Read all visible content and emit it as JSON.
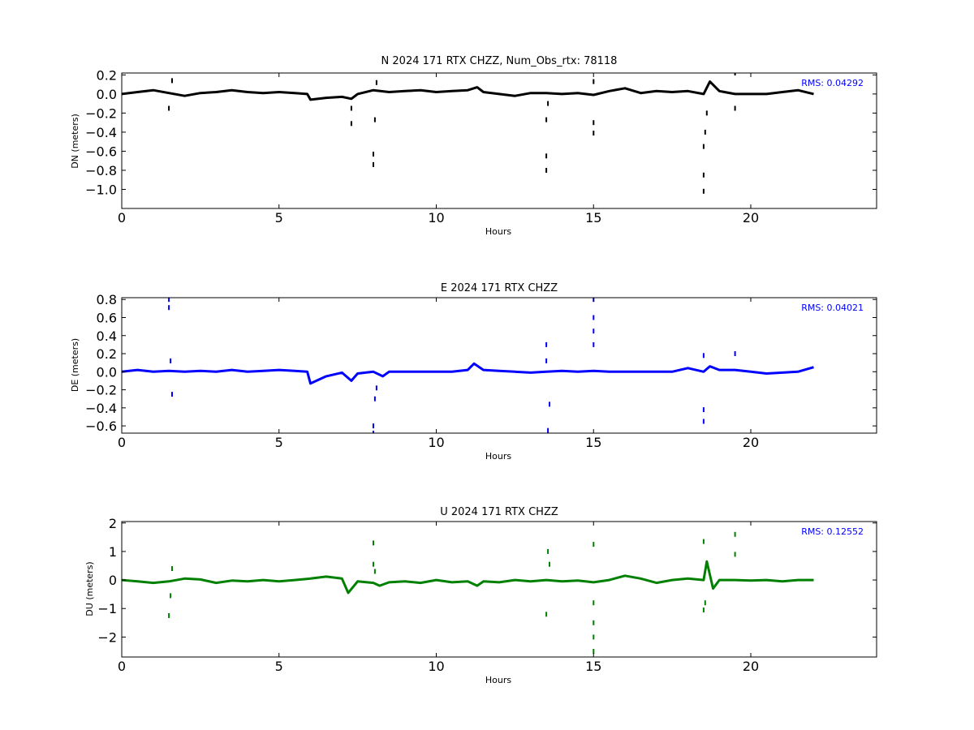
{
  "chart_data": [
    {
      "type": "line",
      "title": "N 2024 171 RTX  CHZZ, Num_Obs_rtx: 78118",
      "xlabel": "Hours",
      "ylabel": "DN (meters)",
      "xlim": [
        0,
        24
      ],
      "ylim": [
        -1.2,
        0.22
      ],
      "x_ticks": [
        0,
        5,
        10,
        15,
        20
      ],
      "y_ticks": [
        0.2,
        0.0,
        -0.2,
        -0.4,
        -0.6,
        -0.8,
        -1.0
      ],
      "x_tick_labels": [
        "0",
        "5",
        "10",
        "15",
        "20"
      ],
      "y_tick_labels": [
        "0.2",
        "0.0",
        "−0.2",
        "−0.4",
        "−0.6",
        "−0.8",
        "−1.0"
      ],
      "annotation": "RMS:  0.04292",
      "annotation_color": "#0000ff",
      "grid": false,
      "color": "#000000",
      "series": [
        {
          "x": [
            0,
            0.5,
            1,
            1.5,
            2,
            2.5,
            3,
            3.5,
            4,
            4.5,
            5,
            5.5,
            5.9,
            6.0,
            6.5,
            7,
            7.3,
            7.5,
            8,
            8.5,
            9,
            9.5,
            10,
            10.5,
            11,
            11.3,
            11.5,
            12,
            12.5,
            13,
            13.5,
            14,
            14.5,
            15,
            15.5,
            16,
            16.5,
            17,
            17.5,
            18,
            18.5,
            18.7,
            19,
            19.5,
            20,
            20.5,
            21,
            21.5,
            22
          ],
          "y": [
            0.0,
            0.02,
            0.04,
            0.01,
            -0.02,
            0.01,
            0.02,
            0.04,
            0.02,
            0.01,
            0.02,
            0.01,
            0.0,
            -0.06,
            -0.04,
            -0.03,
            -0.05,
            0.0,
            0.04,
            0.02,
            0.03,
            0.04,
            0.02,
            0.03,
            0.04,
            0.07,
            0.02,
            0.0,
            -0.02,
            0.01,
            0.01,
            0.0,
            0.01,
            -0.01,
            0.03,
            0.06,
            0.01,
            0.03,
            0.02,
            0.03,
            0.0,
            0.13,
            0.03,
            0.0,
            0.0,
            0.0,
            0.02,
            0.04,
            0.0
          ]
        }
      ],
      "outliers": [
        {
          "x": 1.5,
          "y": -0.15
        },
        {
          "x": 1.6,
          "y": 0.14
        },
        {
          "x": 7.3,
          "y": -0.31
        },
        {
          "x": 7.3,
          "y": -0.15
        },
        {
          "x": 8.0,
          "y": -0.63
        },
        {
          "x": 8.0,
          "y": -0.74
        },
        {
          "x": 8.05,
          "y": -0.27
        },
        {
          "x": 8.1,
          "y": 0.12
        },
        {
          "x": 13.5,
          "y": -0.27
        },
        {
          "x": 13.5,
          "y": -0.65
        },
        {
          "x": 13.5,
          "y": -0.8
        },
        {
          "x": 13.55,
          "y": -0.1
        },
        {
          "x": 15.0,
          "y": -0.41
        },
        {
          "x": 15.0,
          "y": -0.3
        },
        {
          "x": 15.0,
          "y": 0.13
        },
        {
          "x": 18.5,
          "y": -1.02
        },
        {
          "x": 18.5,
          "y": -0.85
        },
        {
          "x": 18.5,
          "y": -0.55
        },
        {
          "x": 18.55,
          "y": -0.4
        },
        {
          "x": 18.6,
          "y": -0.2
        },
        {
          "x": 19.5,
          "y": 0.22
        },
        {
          "x": 19.5,
          "y": -0.15
        }
      ]
    },
    {
      "type": "line",
      "title": "E 2024 171 RTX  CHZZ",
      "xlabel": "Hours",
      "ylabel": "DE (meters)",
      "xlim": [
        0,
        24
      ],
      "ylim": [
        -0.68,
        0.82
      ],
      "x_ticks": [
        0,
        5,
        10,
        15,
        20
      ],
      "y_ticks": [
        0.8,
        0.6,
        0.4,
        0.2,
        0.0,
        -0.2,
        -0.4,
        -0.6
      ],
      "x_tick_labels": [
        "0",
        "5",
        "10",
        "15",
        "20"
      ],
      "y_tick_labels": [
        "0.8",
        "0.6",
        "0.4",
        "0.2",
        "0.0",
        "−0.2",
        "−0.4",
        "−0.6"
      ],
      "annotation": "RMS:  0.04021",
      "annotation_color": "#0000ff",
      "grid": false,
      "color": "#0000ff",
      "series": [
        {
          "x": [
            0,
            0.5,
            1,
            1.5,
            2,
            2.5,
            3,
            3.5,
            4,
            4.5,
            5,
            5.5,
            5.9,
            6.0,
            6.5,
            7,
            7.3,
            7.5,
            8,
            8.3,
            8.5,
            9,
            9.5,
            10,
            10.5,
            11,
            11.2,
            11.5,
            12,
            12.5,
            13,
            13.5,
            14,
            14.5,
            15,
            15.5,
            16,
            16.5,
            17,
            17.5,
            18,
            18.5,
            18.7,
            19,
            19.5,
            20,
            20.5,
            21,
            21.5,
            22
          ],
          "y": [
            0.0,
            0.02,
            0.0,
            0.01,
            0.0,
            0.01,
            0.0,
            0.02,
            0.0,
            0.01,
            0.02,
            0.01,
            0.0,
            -0.13,
            -0.05,
            -0.01,
            -0.1,
            -0.02,
            0.0,
            -0.05,
            0.0,
            0.0,
            0.0,
            0.0,
            0.0,
            0.02,
            0.09,
            0.02,
            0.01,
            0.0,
            -0.01,
            0.0,
            0.01,
            0.0,
            0.01,
            0.0,
            0.0,
            0.0,
            0.0,
            0.0,
            0.04,
            0.0,
            0.06,
            0.02,
            0.02,
            0.0,
            -0.02,
            -0.01,
            0.0,
            0.05
          ]
        }
      ],
      "outliers": [
        {
          "x": 1.5,
          "y": 0.8
        },
        {
          "x": 1.5,
          "y": 0.71
        },
        {
          "x": 1.55,
          "y": 0.12
        },
        {
          "x": 1.6,
          "y": -0.25
        },
        {
          "x": 8.0,
          "y": -0.6
        },
        {
          "x": 8.0,
          "y": -0.68
        },
        {
          "x": 8.05,
          "y": -0.3
        },
        {
          "x": 8.1,
          "y": -0.18
        },
        {
          "x": 13.5,
          "y": 0.3
        },
        {
          "x": 13.5,
          "y": 0.12
        },
        {
          "x": 13.6,
          "y": -0.36
        },
        {
          "x": 13.55,
          "y": -0.65
        },
        {
          "x": 15.0,
          "y": 0.8
        },
        {
          "x": 15.0,
          "y": 0.6
        },
        {
          "x": 15.0,
          "y": 0.45
        },
        {
          "x": 15.0,
          "y": 0.3
        },
        {
          "x": 18.5,
          "y": -0.42
        },
        {
          "x": 18.5,
          "y": -0.55
        },
        {
          "x": 18.5,
          "y": 0.18
        },
        {
          "x": 19.5,
          "y": 0.2
        }
      ]
    },
    {
      "type": "line",
      "title": "U 2024 171 RTX  CHZZ",
      "xlabel": "Hours",
      "ylabel": "DU (meters)",
      "xlim": [
        0,
        24
      ],
      "ylim": [
        -2.7,
        2.05
      ],
      "x_ticks": [
        0,
        5,
        10,
        15,
        20
      ],
      "y_ticks": [
        2,
        1,
        0,
        -1,
        -2
      ],
      "x_tick_labels": [
        "0",
        "5",
        "10",
        "15",
        "20"
      ],
      "y_tick_labels": [
        "2",
        "1",
        "0",
        "−1",
        "−2"
      ],
      "annotation": "RMS:  0.12552",
      "annotation_color": "#0000ff",
      "grid": false,
      "color": "#008000",
      "series": [
        {
          "x": [
            0,
            0.5,
            1,
            1.5,
            2,
            2.5,
            3,
            3.5,
            4,
            4.5,
            5,
            5.5,
            6,
            6.5,
            7,
            7.2,
            7.5,
            8,
            8.2,
            8.5,
            9,
            9.5,
            10,
            10.5,
            11,
            11.3,
            11.5,
            12,
            12.5,
            13,
            13.5,
            14,
            14.5,
            15,
            15.5,
            16,
            16.5,
            17,
            17.5,
            18,
            18.5,
            18.6,
            18.8,
            19,
            19.5,
            20,
            20.5,
            21,
            21.5,
            22
          ],
          "y": [
            0.0,
            -0.05,
            -0.1,
            -0.05,
            0.05,
            0.02,
            -0.1,
            -0.02,
            -0.05,
            0.0,
            -0.05,
            0.0,
            0.05,
            0.12,
            0.05,
            -0.45,
            -0.05,
            -0.1,
            -0.2,
            -0.08,
            -0.05,
            -0.1,
            0.0,
            -0.08,
            -0.05,
            -0.2,
            -0.05,
            -0.08,
            0.0,
            -0.05,
            0.0,
            -0.05,
            -0.02,
            -0.08,
            0.0,
            0.15,
            0.05,
            -0.1,
            0.0,
            0.05,
            0.0,
            0.65,
            -0.3,
            0.0,
            0.0,
            -0.02,
            0.0,
            -0.05,
            0.0,
            0.0
          ]
        }
      ],
      "outliers": [
        {
          "x": 1.5,
          "y": -1.25
        },
        {
          "x": 1.55,
          "y": -0.55
        },
        {
          "x": 1.6,
          "y": 0.4
        },
        {
          "x": 8.0,
          "y": 1.3
        },
        {
          "x": 8.0,
          "y": 0.55
        },
        {
          "x": 8.05,
          "y": 0.3
        },
        {
          "x": 13.5,
          "y": -1.2
        },
        {
          "x": 13.55,
          "y": 1.0
        },
        {
          "x": 13.6,
          "y": 0.55
        },
        {
          "x": 15.0,
          "y": 1.25
        },
        {
          "x": 15.0,
          "y": -0.8
        },
        {
          "x": 15.0,
          "y": -1.5
        },
        {
          "x": 15.0,
          "y": -2.0
        },
        {
          "x": 15.0,
          "y": -2.5
        },
        {
          "x": 18.5,
          "y": 1.35
        },
        {
          "x": 18.5,
          "y": -1.05
        },
        {
          "x": 18.55,
          "y": -0.8
        },
        {
          "x": 19.5,
          "y": 1.6
        },
        {
          "x": 19.5,
          "y": 0.9
        }
      ]
    }
  ]
}
